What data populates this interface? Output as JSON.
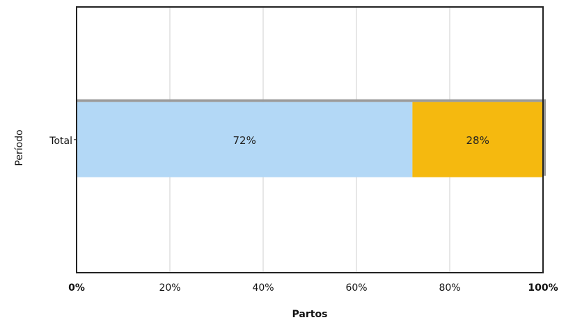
{
  "chart_data": {
    "type": "bar",
    "orientation": "horizontal",
    "stacked": true,
    "categories": [
      "Total"
    ],
    "series": [
      {
        "values": [
          72
        ],
        "color": "#b3d8f6"
      },
      {
        "values": [
          28
        ],
        "color": "#f5b90f"
      }
    ],
    "data_labels": [
      "72%",
      "28%"
    ],
    "xlabel": "Partos",
    "ylabel": "Período",
    "xlim": [
      0,
      100
    ],
    "x_ticks": [
      "0%",
      "20%",
      "40%",
      "60%",
      "80%",
      "100%"
    ],
    "grid": true
  }
}
